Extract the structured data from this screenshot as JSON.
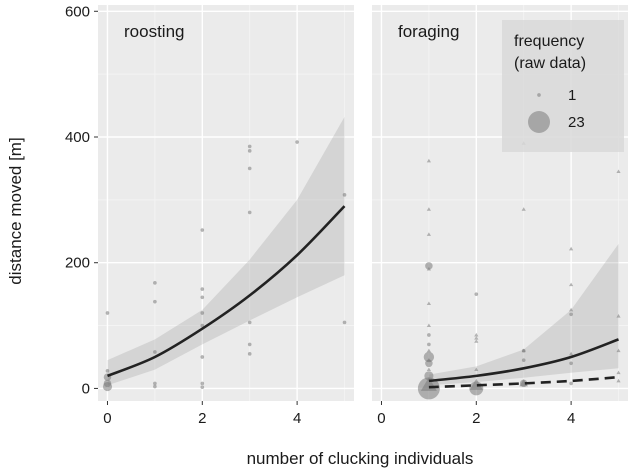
{
  "chart_data": {
    "type": "scatter",
    "xlabel": "number of clucking individuals",
    "ylabel": "distance moved [m]",
    "x_ticks": [
      0,
      2,
      4
    ],
    "y_ticks": [
      0,
      200,
      400,
      600
    ],
    "xlim": [
      -0.2,
      5.2
    ],
    "ylim": [
      -20,
      610
    ],
    "grid": true,
    "legend_position": "top-right",
    "legend": {
      "title_line1": "frequency",
      "title_line2": "(raw data)",
      "items": [
        {
          "label": "1",
          "frequency": 1
        },
        {
          "label": "23",
          "frequency": 23
        }
      ]
    },
    "panels": [
      {
        "label": "roosting",
        "series": [
          {
            "kind": "points",
            "marker": "circle",
            "points": [
              {
                "x": 0,
                "y": 120,
                "f": 1
              },
              {
                "x": 0,
                "y": 28,
                "f": 1
              },
              {
                "x": 0,
                "y": 18,
                "f": 2
              },
              {
                "x": 0,
                "y": 8,
                "f": 2
              },
              {
                "x": 0,
                "y": 3,
                "f": 3
              },
              {
                "x": 1,
                "y": 168,
                "f": 1
              },
              {
                "x": 1,
                "y": 138,
                "f": 1
              },
              {
                "x": 1,
                "y": 58,
                "f": 1
              },
              {
                "x": 1,
                "y": 8,
                "f": 1
              },
              {
                "x": 1,
                "y": 3,
                "f": 1
              },
              {
                "x": 2,
                "y": 252,
                "f": 1
              },
              {
                "x": 2,
                "y": 158,
                "f": 1
              },
              {
                "x": 2,
                "y": 145,
                "f": 1
              },
              {
                "x": 2,
                "y": 120,
                "f": 1
              },
              {
                "x": 2,
                "y": 100,
                "f": 1
              },
              {
                "x": 2,
                "y": 50,
                "f": 1
              },
              {
                "x": 2,
                "y": 8,
                "f": 1
              },
              {
                "x": 2,
                "y": 2,
                "f": 1
              },
              {
                "x": 3,
                "y": 385,
                "f": 1
              },
              {
                "x": 3,
                "y": 378,
                "f": 1
              },
              {
                "x": 3,
                "y": 350,
                "f": 1
              },
              {
                "x": 3,
                "y": 280,
                "f": 1
              },
              {
                "x": 3,
                "y": 105,
                "f": 1
              },
              {
                "x": 3,
                "y": 70,
                "f": 1
              },
              {
                "x": 3,
                "y": 55,
                "f": 1
              },
              {
                "x": 4,
                "y": 392,
                "f": 1
              },
              {
                "x": 5,
                "y": 308,
                "f": 1
              },
              {
                "x": 5,
                "y": 105,
                "f": 1
              }
            ]
          },
          {
            "kind": "fit",
            "line": "solid",
            "x": [
              0,
              1,
              2,
              3,
              4,
              5
            ],
            "y": [
              20,
              50,
              95,
              148,
              212,
              290
            ],
            "ci_low": [
              5,
              30,
              70,
              108,
              145,
              180
            ],
            "ci_high": [
              45,
              78,
              125,
              205,
              300,
              432
            ]
          }
        ]
      },
      {
        "label": "foraging",
        "series": [
          {
            "kind": "points",
            "marker": "circle",
            "points": [
              {
                "x": 1,
                "y": 195,
                "f": 2
              },
              {
                "x": 1,
                "y": 85,
                "f": 1
              },
              {
                "x": 1,
                "y": 70,
                "f": 1
              },
              {
                "x": 1,
                "y": 50,
                "f": 4
              },
              {
                "x": 1,
                "y": 40,
                "f": 2
              },
              {
                "x": 1,
                "y": 20,
                "f": 3
              },
              {
                "x": 1,
                "y": 0,
                "f": 23
              },
              {
                "x": 2,
                "y": 150,
                "f": 1
              },
              {
                "x": 2,
                "y": 0,
                "f": 8
              },
              {
                "x": 3,
                "y": 60,
                "f": 1
              },
              {
                "x": 3,
                "y": 45,
                "f": 1
              },
              {
                "x": 3,
                "y": 8,
                "f": 2
              },
              {
                "x": 4,
                "y": 118,
                "f": 1
              },
              {
                "x": 4,
                "y": 40,
                "f": 1
              },
              {
                "x": 4,
                "y": 8,
                "f": 1
              }
            ]
          },
          {
            "kind": "points",
            "marker": "triangle",
            "points": [
              {
                "x": 1,
                "y": 362,
                "f": 1
              },
              {
                "x": 1,
                "y": 285,
                "f": 1
              },
              {
                "x": 1,
                "y": 245,
                "f": 1
              },
              {
                "x": 1,
                "y": 190,
                "f": 1
              },
              {
                "x": 1,
                "y": 135,
                "f": 1
              },
              {
                "x": 1,
                "y": 100,
                "f": 1
              },
              {
                "x": 1,
                "y": 60,
                "f": 1
              },
              {
                "x": 1,
                "y": 45,
                "f": 1
              },
              {
                "x": 1,
                "y": 30,
                "f": 1
              },
              {
                "x": 1,
                "y": 5,
                "f": 8
              },
              {
                "x": 2,
                "y": 85,
                "f": 1
              },
              {
                "x": 2,
                "y": 80,
                "f": 1
              },
              {
                "x": 2,
                "y": 75,
                "f": 1
              },
              {
                "x": 2,
                "y": 30,
                "f": 1
              },
              {
                "x": 2,
                "y": 5,
                "f": 5
              },
              {
                "x": 3,
                "y": 390,
                "f": 1
              },
              {
                "x": 3,
                "y": 285,
                "f": 1
              },
              {
                "x": 3,
                "y": 60,
                "f": 1
              },
              {
                "x": 3,
                "y": 8,
                "f": 2
              },
              {
                "x": 4,
                "y": 222,
                "f": 1
              },
              {
                "x": 4,
                "y": 165,
                "f": 1
              },
              {
                "x": 4,
                "y": 125,
                "f": 1
              },
              {
                "x": 4,
                "y": 55,
                "f": 1
              },
              {
                "x": 5,
                "y": 345,
                "f": 1
              },
              {
                "x": 5,
                "y": 115,
                "f": 1
              },
              {
                "x": 5,
                "y": 60,
                "f": 1
              },
              {
                "x": 5,
                "y": 25,
                "f": 1
              },
              {
                "x": 5,
                "y": 12,
                "f": 1
              }
            ]
          },
          {
            "kind": "fit",
            "line": "solid",
            "x": [
              1,
              2,
              3,
              4,
              5
            ],
            "y": [
              12,
              20,
              32,
              50,
              78
            ],
            "ci_low": [
              5,
              10,
              17,
              25,
              32
            ],
            "ci_high": [
              22,
              35,
              62,
              125,
              230
            ]
          },
          {
            "kind": "fit",
            "line": "dashed",
            "x": [
              1,
              2,
              3,
              4,
              5
            ],
            "y": [
              2,
              5,
              8,
              12,
              18
            ]
          }
        ]
      }
    ]
  }
}
